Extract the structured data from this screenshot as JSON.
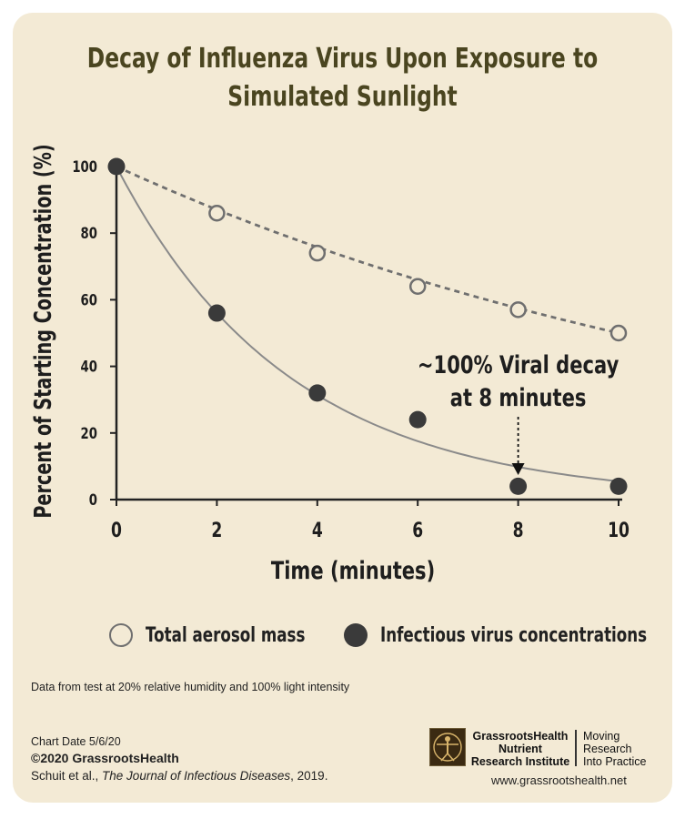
{
  "title": {
    "line1": "Decay of Influenza Virus Upon Exposure to",
    "line2": "Simulated Sunlight"
  },
  "chart_data": {
    "type": "scatter",
    "title": "Decay of Influenza Virus Upon Exposure to Simulated Sunlight",
    "xlabel": "Time (minutes)",
    "ylabel": "Percent of Starting Concentration (%)",
    "xlim": [
      0,
      10
    ],
    "ylim": [
      0,
      100
    ],
    "x_ticks": [
      "0",
      "2",
      "4",
      "6",
      "8",
      "10"
    ],
    "y_ticks": [
      "0",
      "20",
      "40",
      "60",
      "80",
      "100"
    ],
    "grid": false,
    "series": [
      {
        "name": "Total aerosol mass",
        "marker": "open-circle",
        "line": "dashed",
        "x": [
          0,
          2,
          4,
          6,
          8,
          10
        ],
        "values": [
          100,
          86,
          74,
          64,
          57,
          50
        ]
      },
      {
        "name": "Infectious virus concentrations",
        "marker": "filled-circle",
        "line": "solid-fit",
        "x": [
          0,
          2,
          4,
          6,
          8,
          10
        ],
        "values": [
          100,
          56,
          32,
          24,
          4,
          4
        ]
      }
    ],
    "annotation": {
      "line1": "~100% Viral decay",
      "line2": "at 8 minutes",
      "x": 8,
      "y": 4
    }
  },
  "legend": {
    "items": [
      {
        "label": "Total aerosol mass"
      },
      {
        "label": "Infectious virus concentrations"
      }
    ]
  },
  "note": "Data from test at 20% relative humidity and 100% light intensity",
  "footer": {
    "chart_date": "Chart Date 5/6/20",
    "copyright": "©2020 GrassrootsHealth",
    "citation_authors": "Schuit et al., ",
    "citation_journal": "The Journal of Infectious Diseases",
    "citation_year": ", 2019."
  },
  "logo": {
    "name_line1": "GrassrootsHealth",
    "name_line2": "Nutrient",
    "name_line3": "Research Institute",
    "tag_line1": "Moving",
    "tag_line2": "Research",
    "tag_line3": "Into Practice",
    "url": "www.grassrootshealth.net"
  },
  "colors": {
    "background": "#f3ead5",
    "title": "#4a4520",
    "open_marker": "#6f6f6f",
    "filled_marker": "#3a3a3a",
    "axis": "#222222"
  }
}
